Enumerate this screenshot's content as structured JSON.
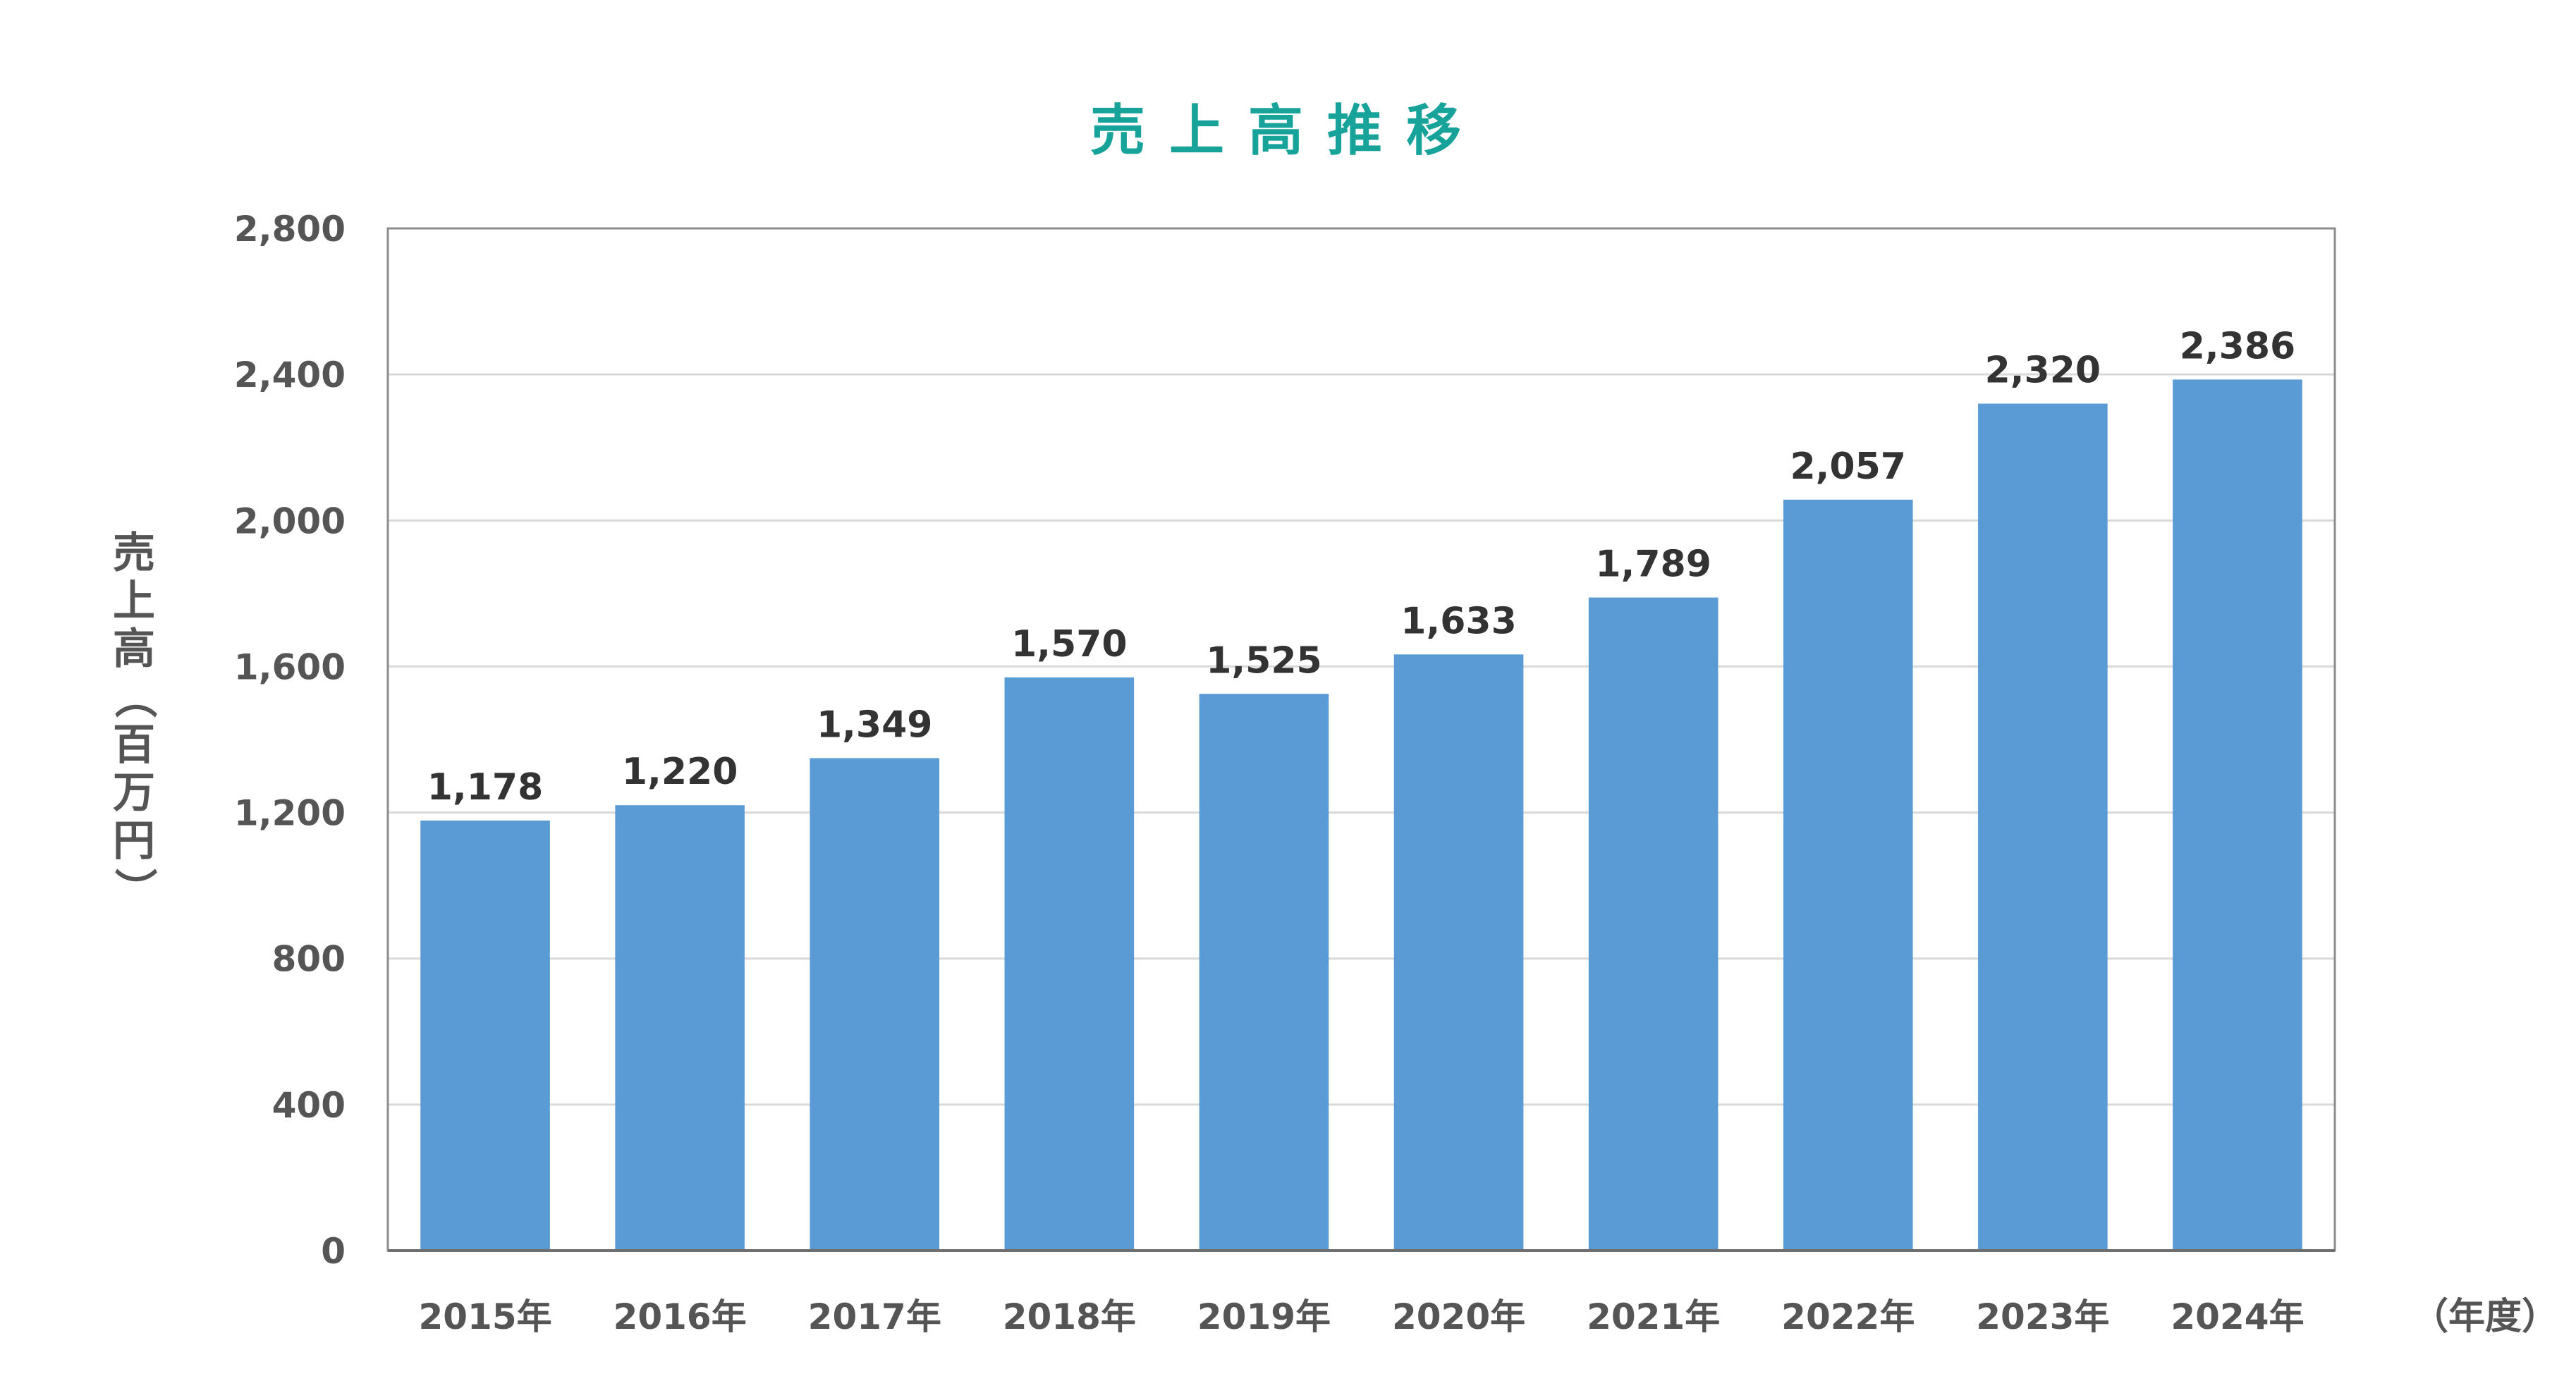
{
  "chart_data": {
    "type": "bar",
    "title": "売上高推移",
    "ylabel": "売上高（百万円）",
    "xlabel": "（年度）",
    "categories": [
      "2015年",
      "2016年",
      "2017年",
      "2018年",
      "2019年",
      "2020年",
      "2021年",
      "2022年",
      "2023年",
      "2024年"
    ],
    "values": [
      1178,
      1220,
      1349,
      1570,
      1525,
      1633,
      1789,
      2057,
      2320,
      2386
    ],
    "value_labels": [
      "1,178",
      "1,220",
      "1,349",
      "1,570",
      "1,525",
      "1,633",
      "1,789",
      "2,057",
      "2,320",
      "2,386"
    ],
    "ylim": [
      0,
      2800
    ],
    "yticks": [
      0,
      400,
      800,
      1200,
      1600,
      2000,
      2400,
      2800
    ],
    "ytick_labels": [
      "0",
      "400",
      "800",
      "1,200",
      "1,600",
      "2,000",
      "2,400",
      "2,800"
    ],
    "grid": true,
    "legend": "none",
    "colors": {
      "bar": "#5b9bd5",
      "title": "#17a39a",
      "text": "#555555",
      "data_label": "#333333",
      "grid": "#d9d9d9",
      "frame": "#8c8c8c"
    }
  }
}
